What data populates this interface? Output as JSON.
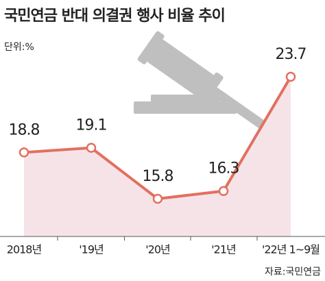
{
  "chart_data": {
    "type": "line",
    "title": "국민연금 반대 의결권 행사 비율 추이",
    "unit": "단위:%",
    "source": "자료:국민연금",
    "categories": [
      "2018년",
      "'19년",
      "'20년",
      "'21년",
      "'22년 1~9월"
    ],
    "values": [
      18.8,
      19.1,
      15.8,
      16.3,
      23.7
    ],
    "color": "#e2705f",
    "area_color": "#f6e3e8"
  }
}
